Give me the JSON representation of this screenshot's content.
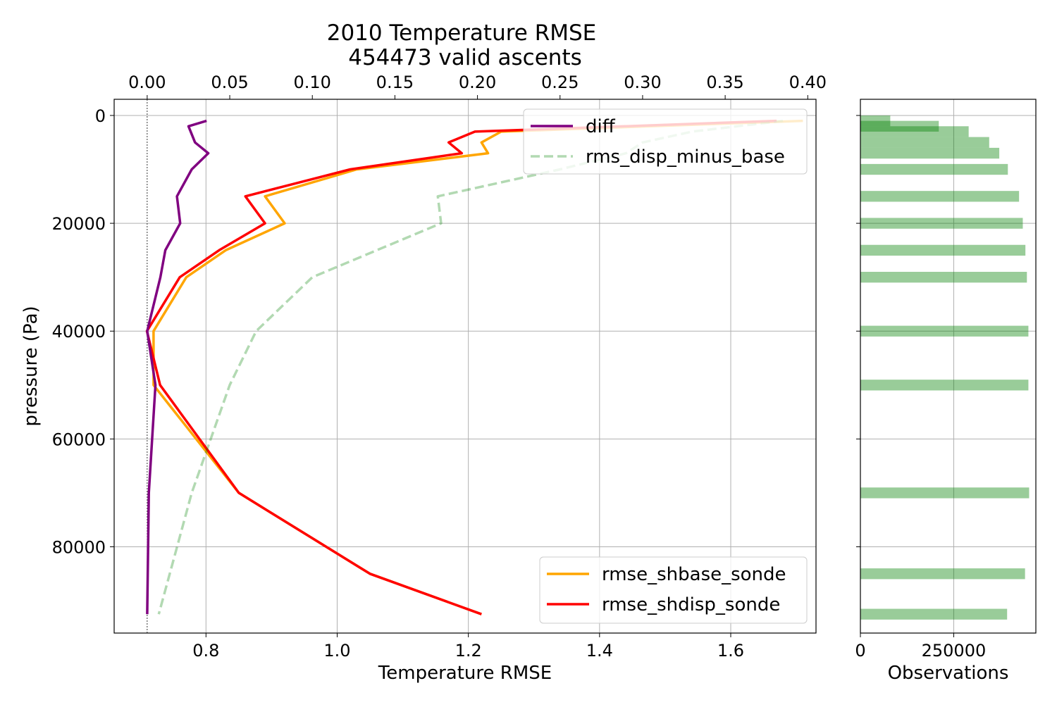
{
  "figure": {
    "title_line1": "2010 Temperature RMSE",
    "title_line2": "454473 valid ascents"
  },
  "chart_data": [
    {
      "type": "line",
      "title": "2010 Temperature RMSE\n454473 valid ascents",
      "xlabel": "Temperature RMSE",
      "ylabel": "pressure (Pa)",
      "xlim": [
        0.66,
        1.73
      ],
      "ylim": [
        96000,
        -3000
      ],
      "y_inverted": true,
      "grid": true,
      "xticks": [
        0.8,
        1.0,
        1.2,
        1.4,
        1.6
      ],
      "xtick_labels": [
        "0.8",
        "1.0",
        "1.2",
        "1.4",
        "1.6"
      ],
      "yticks": [
        0,
        20000,
        40000,
        60000,
        80000
      ],
      "ytick_labels": [
        "0",
        "20000",
        "40000",
        "60000",
        "80000"
      ],
      "secondary_xaxis": {
        "position": "top",
        "xlim": [
          -0.02,
          0.405
        ],
        "xticks": [
          0.0,
          0.05,
          0.1,
          0.15,
          0.2,
          0.25,
          0.3,
          0.35,
          0.4
        ],
        "xtick_labels": [
          "0.00",
          "0.05",
          "0.10",
          "0.15",
          "0.20",
          "0.25",
          "0.30",
          "0.35",
          "0.40"
        ]
      },
      "zero_reference_line": {
        "axis": "top",
        "value": 0.0
      },
      "legend_top": {
        "placement": "top-right",
        "entries": [
          "diff",
          "rms_disp_minus_base"
        ]
      },
      "legend_bottom": {
        "placement": "bottom-right",
        "entries": [
          "rmse_shbase_sonde",
          "rmse_shdisp_sonde"
        ]
      },
      "series": [
        {
          "name": "rmse_shbase_sonde",
          "axis": "bottom",
          "color": "#ffa500",
          "dash": "solid",
          "points": [
            [
              1.71,
              1000
            ],
            [
              1.25,
              3000
            ],
            [
              1.22,
              5000
            ],
            [
              1.23,
              7000
            ],
            [
              1.03,
              10000
            ],
            [
              0.89,
              15000
            ],
            [
              0.92,
              20000
            ],
            [
              0.83,
              25000
            ],
            [
              0.77,
              30000
            ],
            [
              0.72,
              40000
            ],
            [
              0.72,
              50000
            ],
            [
              0.85,
              70000
            ],
            [
              1.05,
              85000
            ],
            [
              1.22,
              92500
            ]
          ]
        },
        {
          "name": "rmse_shdisp_sonde",
          "axis": "bottom",
          "color": "#ff0000",
          "dash": "solid",
          "points": [
            [
              1.67,
              1000
            ],
            [
              1.21,
              3000
            ],
            [
              1.17,
              5000
            ],
            [
              1.19,
              7000
            ],
            [
              1.02,
              10000
            ],
            [
              0.86,
              15000
            ],
            [
              0.89,
              20000
            ],
            [
              0.82,
              25000
            ],
            [
              0.76,
              30000
            ],
            [
              0.71,
              40000
            ],
            [
              0.73,
              50000
            ],
            [
              0.85,
              70000
            ],
            [
              1.05,
              85000
            ],
            [
              1.22,
              92500
            ]
          ]
        },
        {
          "name": "diff",
          "axis": "top",
          "color": "#800080",
          "dash": "solid",
          "points": [
            [
              0.036,
              1000
            ],
            [
              0.025,
              2000
            ],
            [
              0.029,
              5000
            ],
            [
              0.037,
              7000
            ],
            [
              0.027,
              10000
            ],
            [
              0.018,
              15000
            ],
            [
              0.02,
              20000
            ],
            [
              0.011,
              25000
            ],
            [
              0.008,
              30000
            ],
            [
              0.0,
              40000
            ],
            [
              0.005,
              50000
            ],
            [
              0.001,
              70000
            ],
            [
              0.0,
              92500
            ]
          ]
        },
        {
          "name": "rms_disp_minus_base",
          "axis": "top",
          "color": "#008000",
          "opacity": 0.3,
          "dash": "dashed",
          "points": [
            [
              0.385,
              1000
            ],
            [
              0.33,
              3000
            ],
            [
              0.3,
              5000
            ],
            [
              0.29,
              7000
            ],
            [
              0.25,
              10000
            ],
            [
              0.176,
              15000
            ],
            [
              0.178,
              20000
            ],
            [
              0.1,
              30000
            ],
            [
              0.066,
              40000
            ],
            [
              0.05,
              50000
            ],
            [
              0.027,
              70000
            ],
            [
              0.007,
              92500
            ]
          ]
        }
      ]
    },
    {
      "type": "bar",
      "orientation": "horizontal",
      "xlabel": "Observations",
      "xlim": [
        0,
        470000
      ],
      "xticks": [
        0,
        250000
      ],
      "xtick_labels": [
        "0",
        "250000"
      ],
      "ylim": [
        96000,
        -3000
      ],
      "yticks": [
        0,
        20000,
        40000,
        60000,
        80000
      ],
      "grid": true,
      "color": "#008000",
      "opacity": 0.4,
      "bar_height": 2000,
      "bars": [
        {
          "pressure": 1000,
          "value": 80000
        },
        {
          "pressure": 2000,
          "value": 210000
        },
        {
          "pressure": 3000,
          "value": 290000
        },
        {
          "pressure": 5000,
          "value": 345000
        },
        {
          "pressure": 7000,
          "value": 372000
        },
        {
          "pressure": 10000,
          "value": 395000
        },
        {
          "pressure": 15000,
          "value": 425000
        },
        {
          "pressure": 20000,
          "value": 435000
        },
        {
          "pressure": 25000,
          "value": 442000
        },
        {
          "pressure": 30000,
          "value": 446000
        },
        {
          "pressure": 40000,
          "value": 450000
        },
        {
          "pressure": 50000,
          "value": 450000
        },
        {
          "pressure": 70000,
          "value": 452000
        },
        {
          "pressure": 85000,
          "value": 441000
        },
        {
          "pressure": 92500,
          "value": 393000
        }
      ]
    }
  ]
}
